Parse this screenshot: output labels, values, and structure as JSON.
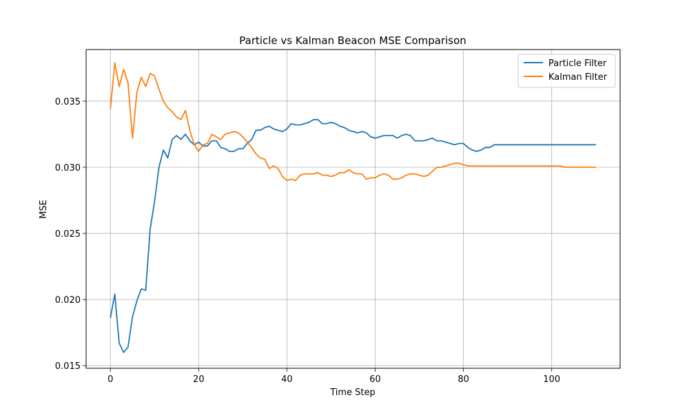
{
  "chart_data": {
    "type": "line",
    "title": "Particle vs Kalman Beacon MSE Comparison",
    "xlabel": "Time Step",
    "ylabel": "MSE",
    "xlim": [
      -5.5,
      115.5
    ],
    "ylim": [
      0.0148,
      0.0389
    ],
    "xticks": [
      0,
      20,
      40,
      60,
      80,
      100
    ],
    "yticks": [
      0.015,
      0.02,
      0.025,
      0.03,
      0.035
    ],
    "ytick_labels": [
      "0.015",
      "0.020",
      "0.025",
      "0.030",
      "0.035"
    ],
    "grid": true,
    "legend_position": "top-right",
    "series": [
      {
        "name": "Particle Filter",
        "color": "#1f77b4",
        "values": [
          0.0186,
          0.0204,
          0.0167,
          0.016,
          0.0164,
          0.0187,
          0.0199,
          0.0208,
          0.0207,
          0.0253,
          0.0274,
          0.03,
          0.0313,
          0.0307,
          0.0321,
          0.0324,
          0.0321,
          0.0325,
          0.032,
          0.0317,
          0.0319,
          0.0316,
          0.0316,
          0.032,
          0.032,
          0.0315,
          0.0314,
          0.0312,
          0.0312,
          0.0314,
          0.0314,
          0.0318,
          0.0321,
          0.0328,
          0.0328,
          0.033,
          0.0331,
          0.0329,
          0.0328,
          0.0327,
          0.0329,
          0.0333,
          0.0332,
          0.0332,
          0.0333,
          0.0334,
          0.0336,
          0.0336,
          0.0333,
          0.0333,
          0.0334,
          0.0333,
          0.0331,
          0.033,
          0.0328,
          0.0327,
          0.0326,
          0.0327,
          0.0326,
          0.0323,
          0.0322,
          0.0323,
          0.0324,
          0.0324,
          0.0324,
          0.0322,
          0.0324,
          0.0325,
          0.0324,
          0.032,
          0.032,
          0.032,
          0.0321,
          0.0322,
          0.032,
          0.032,
          0.0319,
          0.0318,
          0.0317,
          0.0318,
          0.0318,
          0.0315,
          0.0313,
          0.0312,
          0.0313,
          0.0315,
          0.0315,
          0.0317,
          0.0317,
          0.0317,
          0.0317,
          0.0317,
          0.0317,
          0.0317,
          0.0317,
          0.0317,
          0.0317,
          0.0317,
          0.0317,
          0.0317,
          0.0317,
          0.0317,
          0.0317,
          0.0317,
          0.0317,
          0.0317,
          0.0317,
          0.0317,
          0.0317,
          0.0317,
          0.0317
        ]
      },
      {
        "name": "Kalman Filter",
        "color": "#ff7f0e",
        "values": [
          0.0344,
          0.0379,
          0.0361,
          0.0374,
          0.0364,
          0.0322,
          0.0357,
          0.0368,
          0.0361,
          0.0371,
          0.0369,
          0.0359,
          0.035,
          0.0345,
          0.0342,
          0.0338,
          0.0336,
          0.0343,
          0.0328,
          0.0317,
          0.0312,
          0.0317,
          0.0318,
          0.0325,
          0.0323,
          0.0321,
          0.0325,
          0.0326,
          0.0327,
          0.0326,
          0.0323,
          0.0319,
          0.0315,
          0.031,
          0.0307,
          0.0306,
          0.0299,
          0.0301,
          0.0299,
          0.0293,
          0.029,
          0.0291,
          0.029,
          0.0294,
          0.0295,
          0.0295,
          0.0295,
          0.0296,
          0.0294,
          0.0294,
          0.0293,
          0.0294,
          0.0296,
          0.0296,
          0.0298,
          0.0296,
          0.0295,
          0.0295,
          0.0291,
          0.0292,
          0.0292,
          0.0294,
          0.0295,
          0.0294,
          0.0291,
          0.0291,
          0.0292,
          0.0294,
          0.0295,
          0.0295,
          0.0294,
          0.0293,
          0.0294,
          0.0297,
          0.03,
          0.03,
          0.0301,
          0.0302,
          0.0303,
          0.0303,
          0.0302,
          0.0301,
          0.0301,
          0.0301,
          0.0301,
          0.0301,
          0.0301,
          0.0301,
          0.0301,
          0.0301,
          0.0301,
          0.0301,
          0.0301,
          0.0301,
          0.0301,
          0.0301,
          0.0301,
          0.0301,
          0.0301,
          0.0301,
          0.0301,
          0.0301,
          0.0301,
          0.03,
          0.03,
          0.03,
          0.03,
          0.03,
          0.03,
          0.03,
          0.03
        ]
      }
    ]
  }
}
